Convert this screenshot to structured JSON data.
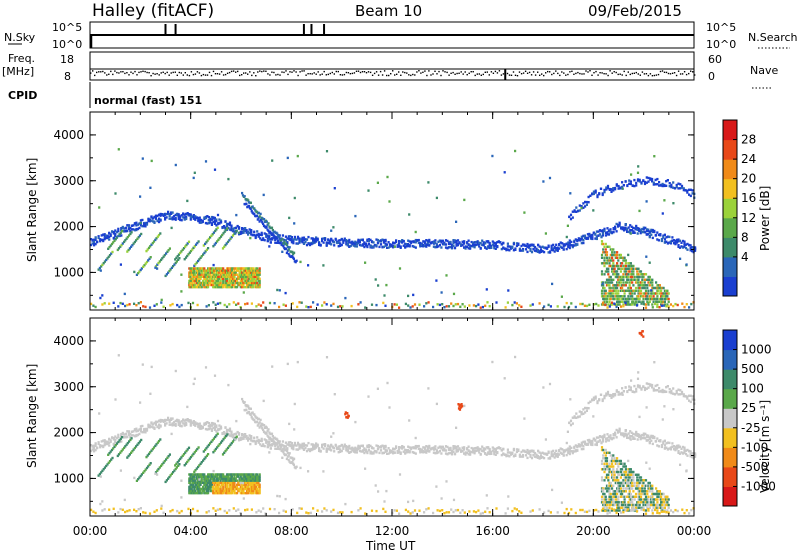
{
  "header": {
    "station": "Halley (fitACF)",
    "beam": "Beam 10",
    "date": "09/Feb/2015"
  },
  "status_panels": {
    "nsky_label": "N.Sky",
    "nsky_ticks": [
      "10^5",
      "10^0"
    ],
    "nsearch_label": "N.Search",
    "nsearch_ticks": [
      "10^5",
      "10^0"
    ],
    "freq_label": "Freq.",
    "freq_unit": "[MHz]",
    "freq_ticks": [
      "18",
      "8"
    ],
    "nave_label": "Nave",
    "nave_ticks": [
      "60",
      "0"
    ],
    "cpid_label": "CPID",
    "cpid_value": "normal (fast) 151"
  },
  "power_colorbar": {
    "title": "Power [dB]",
    "ticks": [
      "4",
      "8",
      "12",
      "16",
      "20",
      "24",
      "28"
    ],
    "colors": [
      "#1a3fd0",
      "#2a66b8",
      "#3d8a6a",
      "#5aa84a",
      "#9bd23a",
      "#f2c020",
      "#f08a18",
      "#e84818",
      "#d81818"
    ]
  },
  "velocity_colorbar": {
    "title": "Velocity [m s⁻¹]",
    "ticks": [
      "1000",
      "500",
      "100",
      "25",
      "-25",
      "-100",
      "-500",
      "-1000"
    ],
    "colors": [
      "#1a3fd0",
      "#2a66b8",
      "#3d8a6a",
      "#5aa84a",
      "#c8c8c8",
      "#f2c020",
      "#f08a18",
      "#e84818",
      "#d81818"
    ]
  },
  "chart_data": [
    {
      "type": "heatmap",
      "title": "",
      "panel": "power",
      "xlabel": "",
      "ylabel": "Slant Range [km]",
      "xlim": [
        "00:00",
        "24:00"
      ],
      "ylim": [
        180,
        4500
      ],
      "x_ticks": [
        "00:00",
        "04:00",
        "08:00",
        "12:00",
        "16:00",
        "20:00",
        "00:00"
      ],
      "y_ticks": [
        1000,
        2000,
        3000,
        4000
      ],
      "features": [
        {
          "name": "backscatter band",
          "x_hours": [
            0,
            1,
            2,
            3,
            4,
            5,
            6,
            7,
            8,
            10,
            12,
            14,
            16,
            18,
            19,
            20,
            21,
            22,
            23,
            24
          ],
          "y_km": [
            1650,
            1850,
            2050,
            2250,
            2200,
            2100,
            1900,
            1750,
            1700,
            1650,
            1620,
            1620,
            1600,
            1500,
            1600,
            1800,
            2000,
            1900,
            1700,
            1500
          ]
        },
        {
          "name": "upper arc (late)",
          "x_hours": [
            19,
            20,
            21,
            22,
            23,
            24
          ],
          "y_km": [
            2200,
            2700,
            2900,
            3000,
            2950,
            2700
          ]
        },
        {
          "name": "strong echo region",
          "x_hours": [
            4,
            5,
            6
          ],
          "y_km": [
            900,
            1000,
            1100
          ],
          "power_db": [
            22,
            26,
            24
          ]
        },
        {
          "name": "late-day echo region",
          "x_hours": [
            20.5,
            21.5,
            22.5
          ],
          "y_km": [
            1400,
            900,
            500
          ],
          "power_db": [
            10,
            16,
            22
          ]
        }
      ]
    },
    {
      "type": "heatmap",
      "title": "",
      "panel": "velocity",
      "xlabel": "Time UT",
      "ylabel": "Slant Range [km]",
      "xlim": [
        "00:00",
        "24:00"
      ],
      "ylim": [
        180,
        4500
      ],
      "x_ticks": [
        "00:00",
        "04:00",
        "08:00",
        "12:00",
        "16:00",
        "20:00",
        "00:00"
      ],
      "y_ticks": [
        1000,
        2000,
        3000,
        4000
      ],
      "features": [
        {
          "name": "ground scatter band",
          "velocity_ms": 0
        },
        {
          "name": "positive velocity streaks",
          "x_hours": [
            0.5,
            1.5,
            2.5
          ],
          "y_km": [
            1200,
            1400,
            1600
          ],
          "velocity_ms": 100
        },
        {
          "name": "negative velocity patch",
          "x_hours": [
            5,
            6.5
          ],
          "y_km": [
            900,
            1200
          ],
          "velocity_ms": -100
        }
      ]
    }
  ]
}
